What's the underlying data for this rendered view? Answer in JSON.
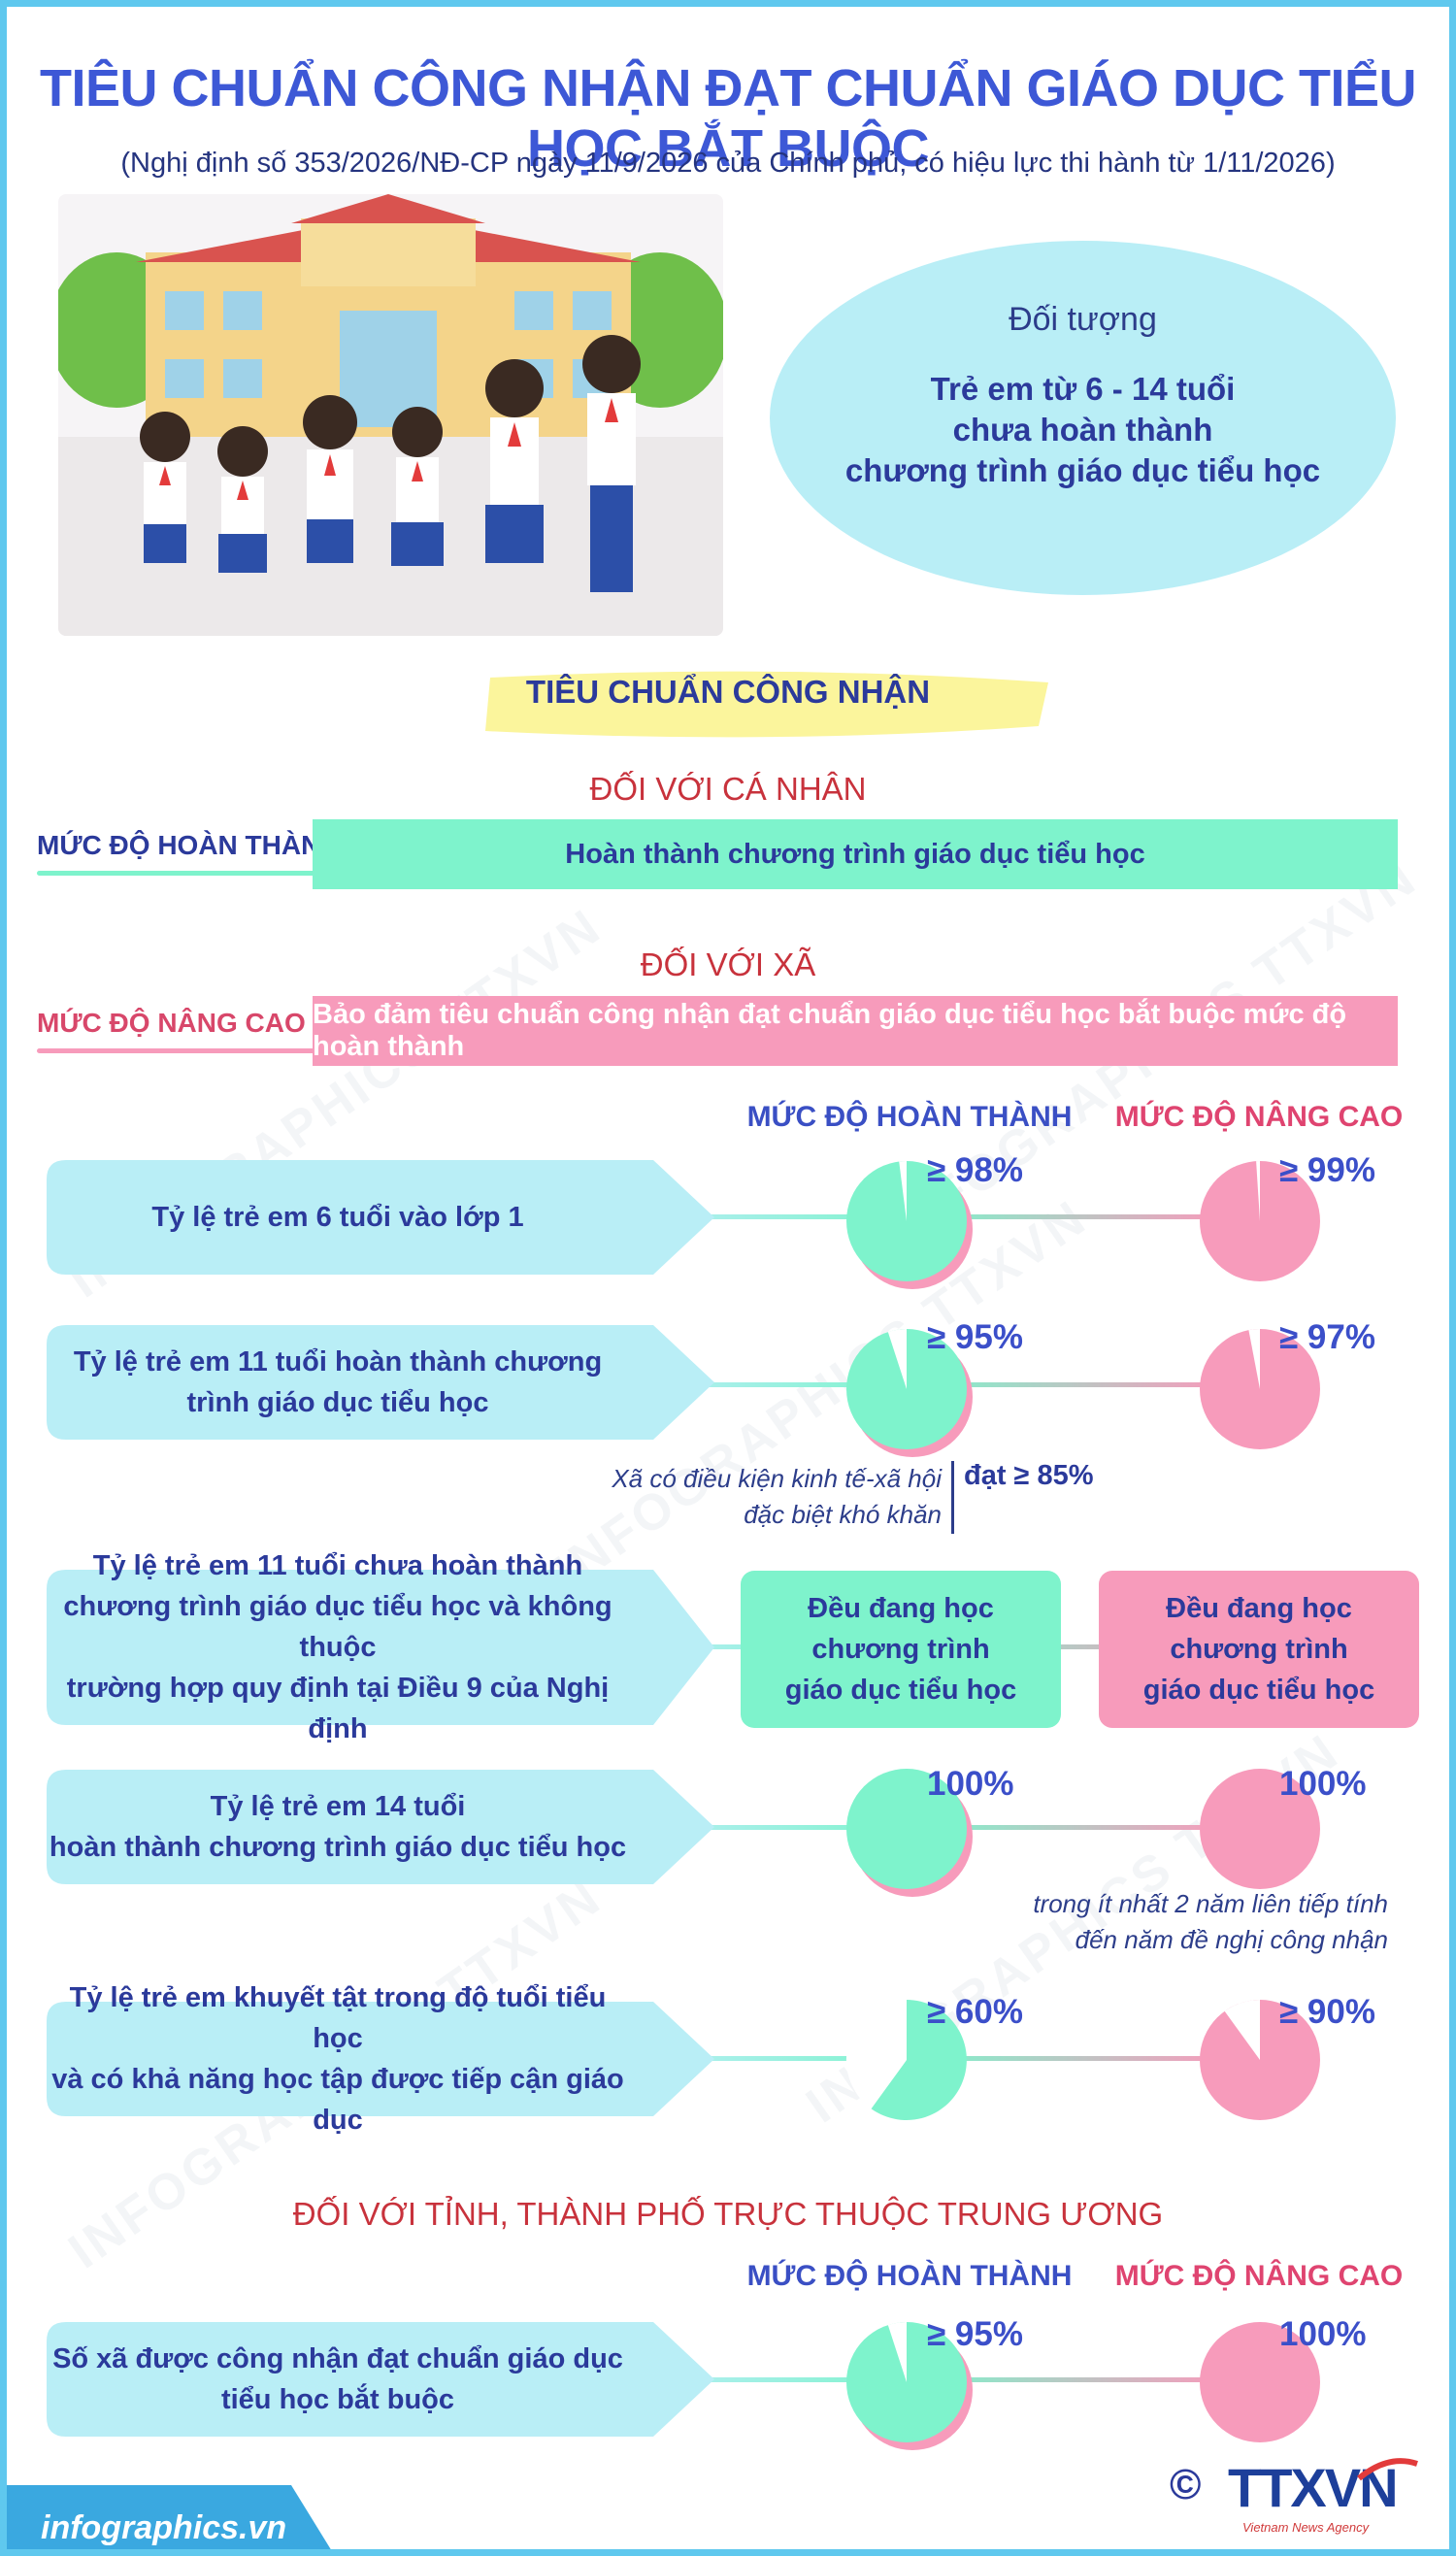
{
  "title": "TIÊU CHUẨN CÔNG NHẬN ĐẠT CHUẨN GIÁO DỤC TIỂU HỌC BẮT BUỘC",
  "subtitle": "(Nghị định số 353/2026/NĐ-CP ngày 11/9/2026 của Chính phủ, có  hiệu lực thi hành từ 1/11/2026)",
  "target": {
    "label": "Đối tượng",
    "lines": [
      "Trẻ em từ 6 - 14 tuổi",
      "chưa hoàn thành",
      "chương trình giáo dục tiểu học"
    ]
  },
  "section_title": "TIÊU CHUẨN CÔNG NHẬN",
  "individual": {
    "heading": "ĐỐI VỚI CÁ NHÂN",
    "level": "MỨC ĐỘ HOÀN THÀNH",
    "text": "Hoàn thành chương trình giáo dục tiểu học"
  },
  "commune": {
    "heading": "ĐỐI VỚI XÃ",
    "level": "MỨC ĐỘ NÂNG CAO",
    "text": "Bảo đảm tiêu chuẩn công nhận đạt chuẩn giáo dục tiểu học bắt buộc mức độ hoàn thành",
    "col_complete": "MỨC ĐỘ HOÀN THÀNH",
    "col_advanced": "MỨC ĐỘ NÂNG CAO",
    "rows": [
      {
        "lines": [
          "Tỷ lệ trẻ em 6 tuổi vào lớp 1"
        ],
        "complete": "≥ 98%",
        "advanced": "≥ 99%",
        "complete_fraction": 0.98,
        "advanced_fraction": 0.99
      },
      {
        "lines": [
          "Tỷ lệ trẻ em 11 tuổi hoàn thành chương",
          "trình giáo dục tiểu học"
        ],
        "complete": "≥ 95%",
        "advanced": "≥ 97%",
        "complete_fraction": 0.95,
        "advanced_fraction": 0.97
      },
      {
        "lines": [
          "Tỷ lệ trẻ em 11 tuổi chưa hoàn thành",
          "chương trình giáo dục tiểu học và không thuộc",
          "trường hợp quy định tại Điều 9 của Nghị định"
        ],
        "complete_box": [
          "Đều đang học",
          "chương trình",
          "giáo dục tiểu học"
        ],
        "advanced_box": [
          "Đều đang học",
          "chương trình",
          "giáo dục tiểu học"
        ]
      },
      {
        "lines": [
          "Tỷ lệ trẻ em 14 tuổi",
          "hoàn thành chương trình giáo dục tiểu học"
        ],
        "complete": "100%",
        "advanced": "100%",
        "complete_fraction": 1.0,
        "advanced_fraction": 1.0
      },
      {
        "lines": [
          "Tỷ lệ trẻ em khuyết tật trong độ tuổi tiểu học",
          "và có khả năng học tập được tiếp cận giáo dục"
        ],
        "complete": "≥ 60%",
        "advanced": "≥ 90%",
        "complete_fraction": 0.6,
        "advanced_fraction": 0.9
      }
    ],
    "note_special": [
      "Xã có điều kiện kinh tế-xã hội",
      "đặc biệt khó khăn"
    ],
    "note_special_value": "đạt ≥ 85%",
    "note_years": [
      "trong ít nhất 2 năm liên tiếp tính",
      "đến năm đề nghị công nhận"
    ]
  },
  "province": {
    "heading": "ĐỐI VỚI TỈNH, THÀNH PHỐ TRỰC THUỘC TRUNG ƯƠNG",
    "col_complete": "MỨC ĐỘ HOÀN THÀNH",
    "col_advanced": "MỨC ĐỘ NÂNG CAO",
    "row": {
      "lines": [
        "Số xã được công nhận đạt chuẩn giáo dục",
        "tiểu học bắt buộc"
      ],
      "complete": "≥ 95%",
      "advanced": "100%",
      "complete_fraction": 0.95,
      "advanced_fraction": 1.0
    }
  },
  "footer": {
    "site": "infographics.vn",
    "copyright": "©",
    "logo": "TTXVN",
    "agency": "Vietnam News Agency"
  },
  "watermark": "INFOGRAPHICS TTXVN",
  "colors": {
    "title": "#3d58d6",
    "green": "#7ef3cc",
    "pink": "#f79bbb",
    "cyan": "#b9eef6",
    "red_head": "#c8323c"
  }
}
